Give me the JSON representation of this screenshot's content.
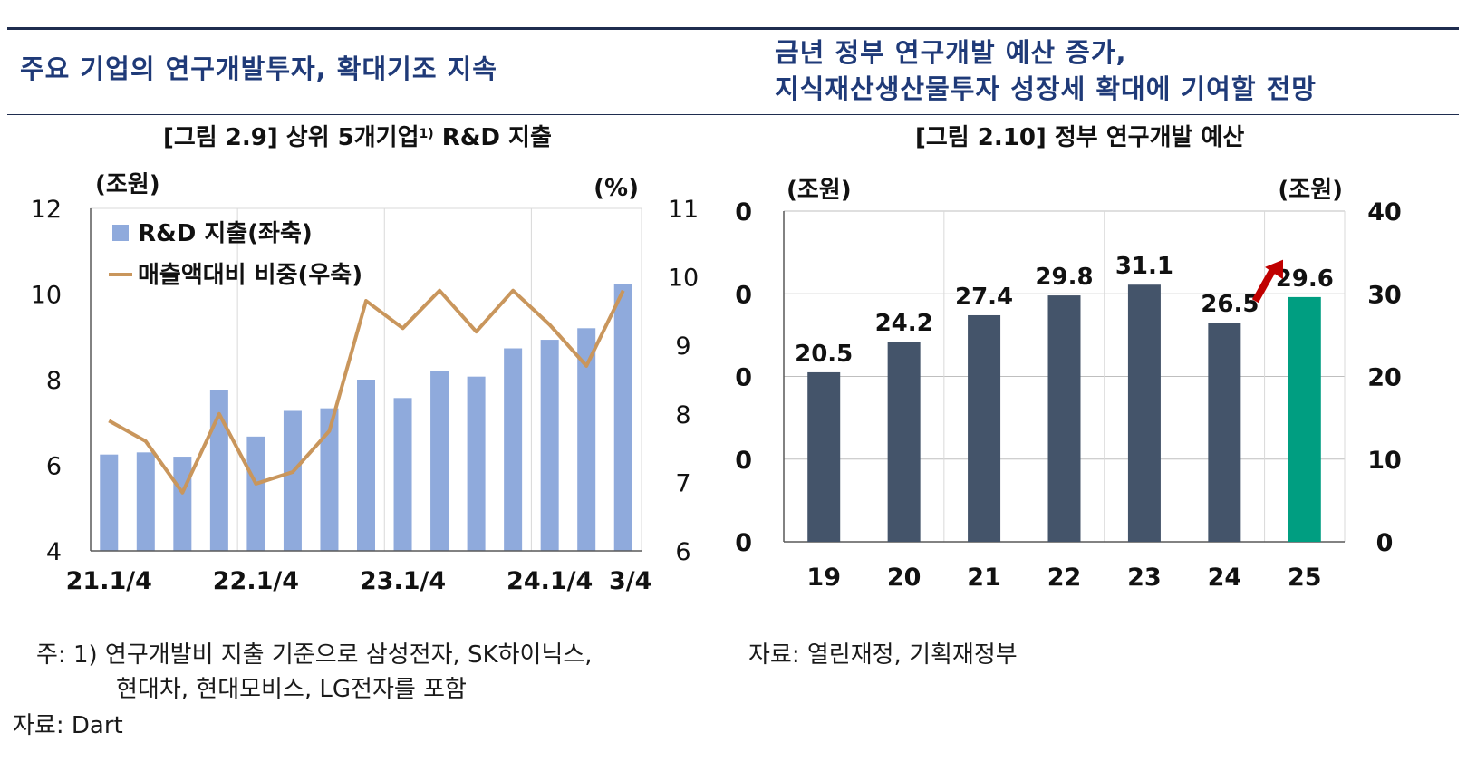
{
  "headline_left": "주요 기업의 연구개발투자, 확대기조 지속",
  "headline_right_line1": "금년 정부 연구개발 예산 증가,",
  "headline_right_line2": "지식재산생산물투자 성장세 확대에 기여할 전망",
  "fig1": {
    "title_prefix": "[그림 2.9] 상위 5개기업",
    "title_sup": "1)",
    "title_suffix": " R&D 지출",
    "note_line1": "주: 1) 연구개발비 지출 기준으로 삼성전자, SK하이닉스,",
    "note_line2": "현대차, 현대모비스, LG전자를 포함",
    "source": "자료: Dart"
  },
  "fig2": {
    "title": "[그림 2.10] 정부 연구개발 예산",
    "source": "자료: 열린재정, 기획재정부"
  },
  "colors": {
    "headline": "#1f3a78",
    "rule": "#1f2d4f",
    "bar_light": "#8faadc",
    "line_orange": "#c9965c",
    "bar_dark": "#44546a",
    "bar_green": "#009e81",
    "arrow_red": "#c00000"
  },
  "chart_data": [
    {
      "type": "bar",
      "left_unit": "(조원)",
      "right_unit": "(%)",
      "ylim_left": [
        4,
        12
      ],
      "yticks_left": [
        "4",
        "6",
        "8",
        "10",
        "12"
      ],
      "ylim_right": [
        6,
        11
      ],
      "yticks_right": [
        "6",
        "7",
        "8",
        "9",
        "10",
        "11"
      ],
      "x_tick_labels": [
        "21.1/4",
        "22.1/4",
        "23.1/4",
        "24.1/4",
        "3/4"
      ],
      "legend": [
        "R&D 지출(좌축)",
        "매출액대비 비중(우축)"
      ],
      "legend_position": "top-left",
      "grid": "vertical",
      "series": [
        {
          "name": "R&D 지출(좌축)",
          "type": "bar",
          "values": [
            6.25,
            6.3,
            6.2,
            7.75,
            6.67,
            7.27,
            7.33,
            8.0,
            7.57,
            8.2,
            8.07,
            8.73,
            8.93,
            9.2,
            10.23
          ]
        },
        {
          "name": "매출액대비 비중(우축)",
          "type": "line",
          "values": [
            7.9,
            7.6,
            6.85,
            8.0,
            6.98,
            7.15,
            7.75,
            9.65,
            9.25,
            9.8,
            9.2,
            9.8,
            9.3,
            8.7,
            9.8
          ]
        }
      ]
    },
    {
      "type": "bar",
      "left_unit": "(조원)",
      "right_unit": "(조원)",
      "ylim": [
        0,
        40
      ],
      "yticks": [
        "0",
        "10",
        "20",
        "30",
        "40"
      ],
      "categories": [
        "19",
        "20",
        "21",
        "22",
        "23",
        "24",
        "25"
      ],
      "values": [
        20.5,
        24.2,
        27.4,
        29.8,
        31.1,
        26.5,
        29.6
      ],
      "value_labels": [
        "20.5",
        "24.2",
        "27.4",
        "29.8",
        "31.1",
        "26.5",
        "29.6"
      ],
      "highlight_index": 6,
      "annotation": "arrow from 24 to 25",
      "grid": "horizontal and vertical"
    }
  ]
}
